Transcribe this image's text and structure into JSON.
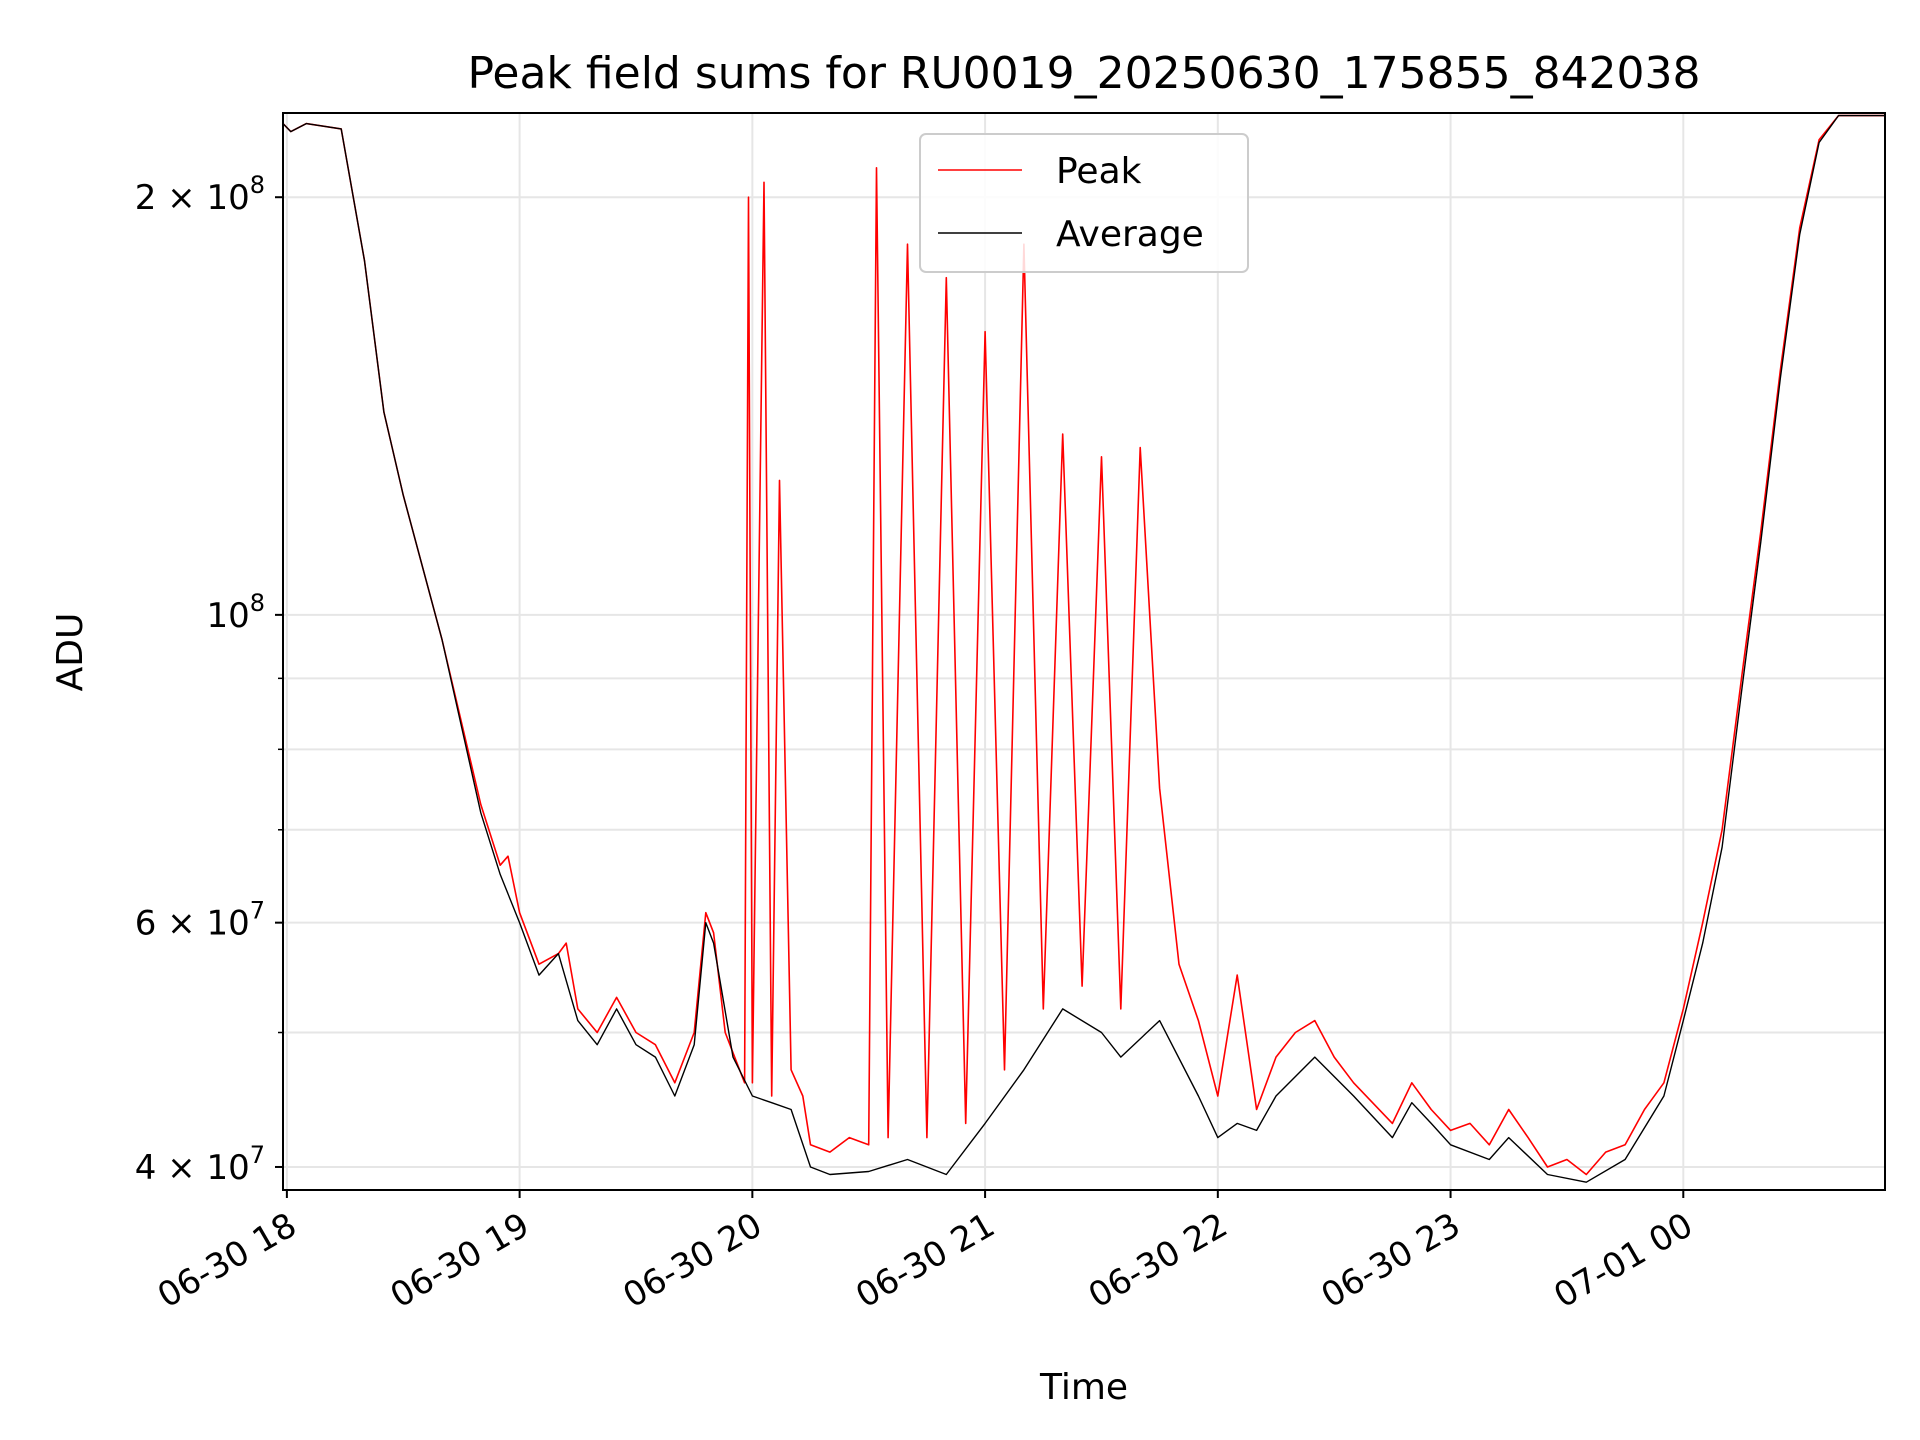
{
  "chart_data": {
    "type": "line",
    "title": "Peak field sums for RU0019_20250630_175855_842038",
    "xlabel": "Time",
    "ylabel": "ADU",
    "yscale": "log",
    "x_axis_type": "time",
    "xlim": [
      "2025-06-30T17:59:00",
      "2025-07-01T00:52:00"
    ],
    "ylim": [
      38500000,
      230000000
    ],
    "grid": true,
    "legend_position": "top-center",
    "x_tick_labels": [
      "06-30 18",
      "06-30 19",
      "06-30 20",
      "06-30 21",
      "06-30 22",
      "06-30 23",
      "07-01 00"
    ],
    "x_tick_values": [
      "2025-06-30T18:00:00",
      "2025-06-30T19:00:00",
      "2025-06-30T20:00:00",
      "2025-06-30T21:00:00",
      "2025-06-30T22:00:00",
      "2025-06-30T23:00:00",
      "2025-07-01T00:00:00"
    ],
    "y_ticks": [
      {
        "value": 40000000,
        "base": "4",
        "exp": "7"
      },
      {
        "value": 60000000,
        "base": "6",
        "exp": "7"
      },
      {
        "value": 100000000,
        "base": "",
        "exp": "8"
      },
      {
        "value": 200000000,
        "base": "2",
        "exp": "8"
      }
    ],
    "series": [
      {
        "name": "Peak",
        "color": "#ff0000",
        "points": [
          [
            "2025-06-30T17:59:00",
            226000000
          ],
          [
            "2025-06-30T18:01:00",
            223000000
          ],
          [
            "2025-06-30T18:05:00",
            226000000
          ],
          [
            "2025-06-30T18:14:00",
            224000000
          ],
          [
            "2025-06-30T18:20:00",
            180000000
          ],
          [
            "2025-06-30T18:25:00",
            140000000
          ],
          [
            "2025-06-30T18:30:00",
            122000000
          ],
          [
            "2025-06-30T18:40:00",
            96000000
          ],
          [
            "2025-06-30T18:50:00",
            73000000
          ],
          [
            "2025-06-30T18:55:00",
            66000000
          ],
          [
            "2025-06-30T18:57:00",
            67000000
          ],
          [
            "2025-06-30T19:00:00",
            61000000
          ],
          [
            "2025-06-30T19:05:00",
            56000000
          ],
          [
            "2025-06-30T19:10:00",
            57000000
          ],
          [
            "2025-06-30T19:12:00",
            58000000
          ],
          [
            "2025-06-30T19:15:00",
            52000000
          ],
          [
            "2025-06-30T19:20:00",
            50000000
          ],
          [
            "2025-06-30T19:25:00",
            53000000
          ],
          [
            "2025-06-30T19:30:00",
            50000000
          ],
          [
            "2025-06-30T19:35:00",
            49000000
          ],
          [
            "2025-06-30T19:40:00",
            46000000
          ],
          [
            "2025-06-30T19:45:00",
            50000000
          ],
          [
            "2025-06-30T19:48:00",
            61000000
          ],
          [
            "2025-06-30T19:50:00",
            59000000
          ],
          [
            "2025-06-30T19:53:00",
            50000000
          ],
          [
            "2025-06-30T19:58:00",
            46000000
          ],
          [
            "2025-06-30T19:59:00",
            200000000
          ],
          [
            "2025-06-30T20:00:00",
            46000000
          ],
          [
            "2025-06-30T20:03:00",
            205000000
          ],
          [
            "2025-06-30T20:05:00",
            45000000
          ],
          [
            "2025-06-30T20:07:00",
            125000000
          ],
          [
            "2025-06-30T20:10:00",
            47000000
          ],
          [
            "2025-06-30T20:13:00",
            45000000
          ],
          [
            "2025-06-30T20:15:00",
            41500000
          ],
          [
            "2025-06-30T20:20:00",
            41000000
          ],
          [
            "2025-06-30T20:25:00",
            42000000
          ],
          [
            "2025-06-30T20:30:00",
            41500000
          ],
          [
            "2025-06-30T20:32:00",
            210000000
          ],
          [
            "2025-06-30T20:35:00",
            42000000
          ],
          [
            "2025-06-30T20:40:00",
            185000000
          ],
          [
            "2025-06-30T20:45:00",
            42000000
          ],
          [
            "2025-06-30T20:50:00",
            175000000
          ],
          [
            "2025-06-30T20:55:00",
            43000000
          ],
          [
            "2025-06-30T21:00:00",
            160000000
          ],
          [
            "2025-06-30T21:05:00",
            47000000
          ],
          [
            "2025-06-30T21:10:00",
            185000000
          ],
          [
            "2025-06-30T21:15:00",
            52000000
          ],
          [
            "2025-06-30T21:20:00",
            135000000
          ],
          [
            "2025-06-30T21:25:00",
            54000000
          ],
          [
            "2025-06-30T21:30:00",
            130000000
          ],
          [
            "2025-06-30T21:35:00",
            52000000
          ],
          [
            "2025-06-30T21:40:00",
            132000000
          ],
          [
            "2025-06-30T21:45:00",
            75000000
          ],
          [
            "2025-06-30T21:50:00",
            56000000
          ],
          [
            "2025-06-30T21:55:00",
            51000000
          ],
          [
            "2025-06-30T22:00:00",
            45000000
          ],
          [
            "2025-06-30T22:05:00",
            55000000
          ],
          [
            "2025-06-30T22:10:00",
            44000000
          ],
          [
            "2025-06-30T22:15:00",
            48000000
          ],
          [
            "2025-06-30T22:20:00",
            50000000
          ],
          [
            "2025-06-30T22:25:00",
            51000000
          ],
          [
            "2025-06-30T22:30:00",
            48000000
          ],
          [
            "2025-06-30T22:35:00",
            46000000
          ],
          [
            "2025-06-30T22:45:00",
            43000000
          ],
          [
            "2025-06-30T22:50:00",
            46000000
          ],
          [
            "2025-06-30T22:55:00",
            44000000
          ],
          [
            "2025-06-30T23:00:00",
            42500000
          ],
          [
            "2025-06-30T23:05:00",
            43000000
          ],
          [
            "2025-06-30T23:10:00",
            41500000
          ],
          [
            "2025-06-30T23:15:00",
            44000000
          ],
          [
            "2025-06-30T23:20:00",
            42000000
          ],
          [
            "2025-06-30T23:25:00",
            40000000
          ],
          [
            "2025-06-30T23:30:00",
            40500000
          ],
          [
            "2025-06-30T23:35:00",
            39500000
          ],
          [
            "2025-06-30T23:40:00",
            41000000
          ],
          [
            "2025-06-30T23:45:00",
            41500000
          ],
          [
            "2025-06-30T23:50:00",
            44000000
          ],
          [
            "2025-06-30T23:55:00",
            46000000
          ],
          [
            "2025-07-01T00:00:00",
            52000000
          ],
          [
            "2025-07-01T00:05:00",
            60000000
          ],
          [
            "2025-07-01T00:10:00",
            70000000
          ],
          [
            "2025-07-01T00:15:00",
            90000000
          ],
          [
            "2025-07-01T00:20:00",
            115000000
          ],
          [
            "2025-07-01T00:25:00",
            150000000
          ],
          [
            "2025-07-01T00:30:00",
            190000000
          ],
          [
            "2025-07-01T00:35:00",
            220000000
          ],
          [
            "2025-07-01T00:40:00",
            229000000
          ],
          [
            "2025-07-01T00:52:00",
            229000000
          ]
        ]
      },
      {
        "name": "Average",
        "color": "#000000",
        "points": [
          [
            "2025-06-30T17:59:00",
            226000000
          ],
          [
            "2025-06-30T18:01:00",
            223000000
          ],
          [
            "2025-06-30T18:05:00",
            226000000
          ],
          [
            "2025-06-30T18:14:00",
            224000000
          ],
          [
            "2025-06-30T18:20:00",
            180000000
          ],
          [
            "2025-06-30T18:25:00",
            140000000
          ],
          [
            "2025-06-30T18:30:00",
            122000000
          ],
          [
            "2025-06-30T18:40:00",
            96000000
          ],
          [
            "2025-06-30T18:50:00",
            72000000
          ],
          [
            "2025-06-30T18:55:00",
            65000000
          ],
          [
            "2025-06-30T19:00:00",
            60000000
          ],
          [
            "2025-06-30T19:05:00",
            55000000
          ],
          [
            "2025-06-30T19:10:00",
            57000000
          ],
          [
            "2025-06-30T19:15:00",
            51000000
          ],
          [
            "2025-06-30T19:20:00",
            49000000
          ],
          [
            "2025-06-30T19:25:00",
            52000000
          ],
          [
            "2025-06-30T19:30:00",
            49000000
          ],
          [
            "2025-06-30T19:35:00",
            48000000
          ],
          [
            "2025-06-30T19:40:00",
            45000000
          ],
          [
            "2025-06-30T19:45:00",
            49000000
          ],
          [
            "2025-06-30T19:48:00",
            60000000
          ],
          [
            "2025-06-30T19:50:00",
            58000000
          ],
          [
            "2025-06-30T19:55:00",
            48000000
          ],
          [
            "2025-06-30T20:00:00",
            45000000
          ],
          [
            "2025-06-30T20:05:00",
            44500000
          ],
          [
            "2025-06-30T20:10:00",
            44000000
          ],
          [
            "2025-06-30T20:15:00",
            40000000
          ],
          [
            "2025-06-30T20:20:00",
            39500000
          ],
          [
            "2025-06-30T20:30:00",
            39700000
          ],
          [
            "2025-06-30T20:40:00",
            40500000
          ],
          [
            "2025-06-30T20:50:00",
            39500000
          ],
          [
            "2025-06-30T21:00:00",
            43000000
          ],
          [
            "2025-06-30T21:10:00",
            47000000
          ],
          [
            "2025-06-30T21:20:00",
            52000000
          ],
          [
            "2025-06-30T21:30:00",
            50000000
          ],
          [
            "2025-06-30T21:35:00",
            48000000
          ],
          [
            "2025-06-30T21:45:00",
            51000000
          ],
          [
            "2025-06-30T21:55:00",
            45000000
          ],
          [
            "2025-06-30T22:00:00",
            42000000
          ],
          [
            "2025-06-30T22:05:00",
            43000000
          ],
          [
            "2025-06-30T22:10:00",
            42500000
          ],
          [
            "2025-06-30T22:15:00",
            45000000
          ],
          [
            "2025-06-30T22:25:00",
            48000000
          ],
          [
            "2025-06-30T22:35:00",
            45000000
          ],
          [
            "2025-06-30T22:45:00",
            42000000
          ],
          [
            "2025-06-30T22:50:00",
            44500000
          ],
          [
            "2025-06-30T22:55:00",
            43000000
          ],
          [
            "2025-06-30T23:00:00",
            41500000
          ],
          [
            "2025-06-30T23:10:00",
            40500000
          ],
          [
            "2025-06-30T23:15:00",
            42000000
          ],
          [
            "2025-06-30T23:25:00",
            39500000
          ],
          [
            "2025-06-30T23:35:00",
            39000000
          ],
          [
            "2025-06-30T23:45:00",
            40500000
          ],
          [
            "2025-06-30T23:55:00",
            45000000
          ],
          [
            "2025-07-01T00:00:00",
            51000000
          ],
          [
            "2025-07-01T00:05:00",
            58000000
          ],
          [
            "2025-07-01T00:10:00",
            68000000
          ],
          [
            "2025-07-01T00:15:00",
            88000000
          ],
          [
            "2025-07-01T00:20:00",
            113000000
          ],
          [
            "2025-07-01T00:25:00",
            148000000
          ],
          [
            "2025-07-01T00:30:00",
            188000000
          ],
          [
            "2025-07-01T00:35:00",
            219000000
          ],
          [
            "2025-07-01T00:40:00",
            229000000
          ],
          [
            "2025-07-01T00:52:00",
            229000000
          ]
        ]
      }
    ]
  }
}
